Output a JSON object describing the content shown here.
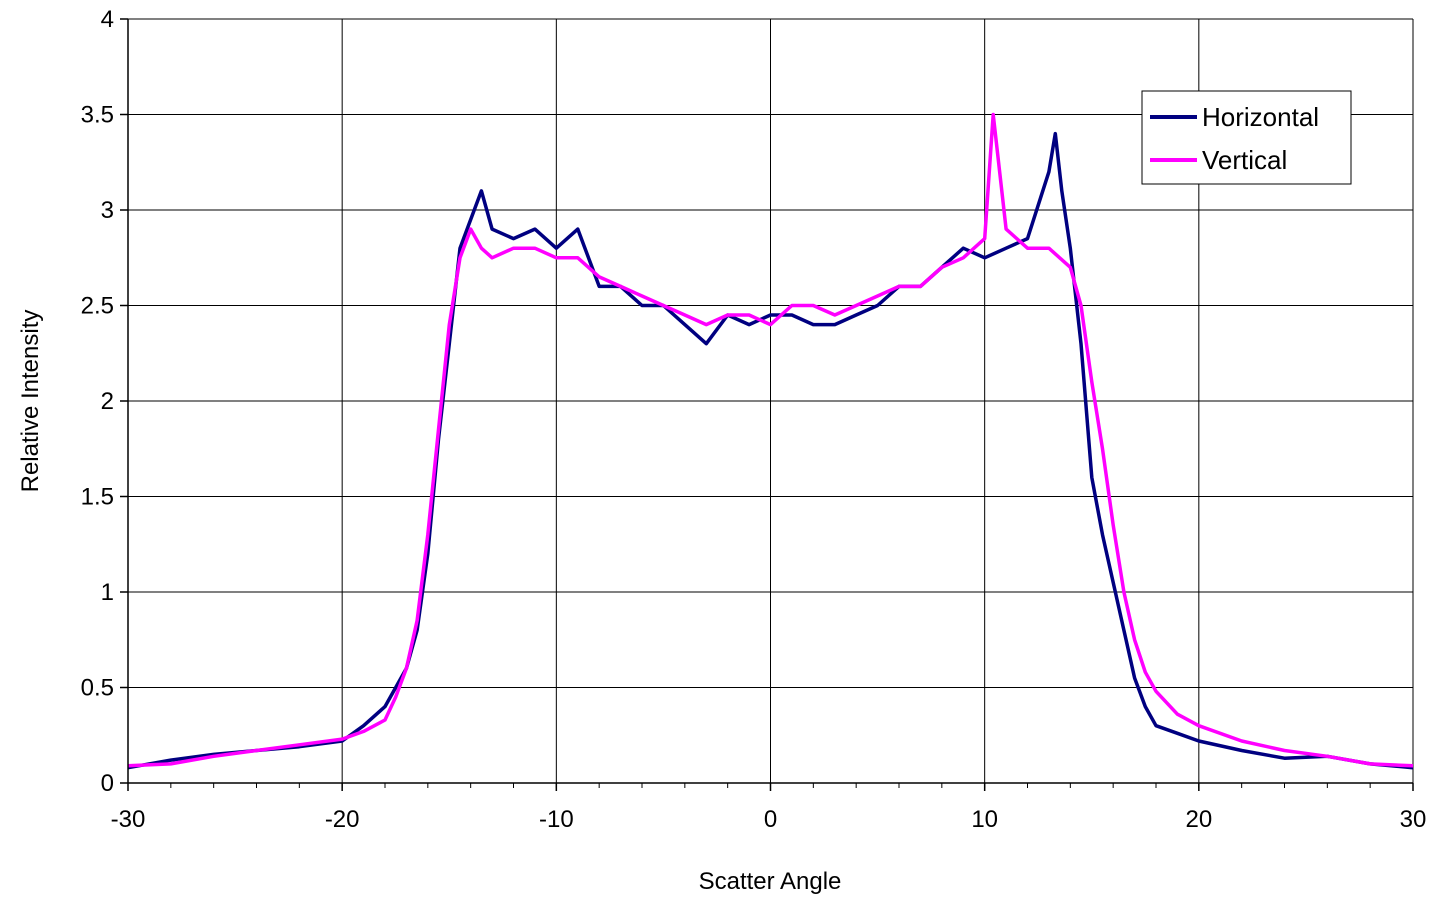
{
  "chart_data": {
    "type": "line",
    "title": "",
    "xlabel": "Scatter Angle",
    "ylabel": "Relative Intensity",
    "xlim": [
      -30,
      30
    ],
    "ylim": [
      0,
      4
    ],
    "x_ticks": [
      "-30",
      "-20",
      "-10",
      "0",
      "10",
      "20",
      "30"
    ],
    "y_ticks": [
      "0",
      "0.5",
      "1",
      "1.5",
      "2",
      "2.5",
      "3",
      "3.5",
      "4"
    ],
    "grid": true,
    "legend_position": "top-right",
    "series": [
      {
        "name": "Horizontal",
        "color": "#000080",
        "x": [
          -30,
          -28,
          -26,
          -24,
          -22,
          -20,
          -19,
          -18,
          -17.5,
          -17,
          -16.5,
          -16,
          -15.5,
          -15,
          -14.5,
          -14,
          -13.5,
          -13,
          -12,
          -11,
          -10,
          -9,
          -8,
          -7,
          -6,
          -5,
          -4,
          -3,
          -2,
          -1,
          0,
          1,
          2,
          3,
          4,
          5,
          6,
          7,
          8,
          9,
          10,
          11,
          12,
          13,
          13.3,
          13.6,
          14,
          14.5,
          15,
          15.5,
          16,
          16.5,
          17,
          17.5,
          18,
          19,
          20,
          22,
          24,
          26,
          28,
          30
        ],
        "y": [
          0.08,
          0.12,
          0.15,
          0.17,
          0.19,
          0.22,
          0.3,
          0.4,
          0.5,
          0.6,
          0.8,
          1.2,
          1.8,
          2.3,
          2.8,
          2.95,
          3.1,
          2.9,
          2.85,
          2.9,
          2.8,
          2.9,
          2.6,
          2.6,
          2.5,
          2.5,
          2.4,
          2.3,
          2.45,
          2.4,
          2.45,
          2.45,
          2.4,
          2.4,
          2.45,
          2.5,
          2.6,
          2.6,
          2.7,
          2.8,
          2.75,
          2.8,
          2.85,
          3.2,
          3.4,
          3.1,
          2.8,
          2.3,
          1.6,
          1.3,
          1.05,
          0.8,
          0.55,
          0.4,
          0.3,
          0.26,
          0.22,
          0.17,
          0.13,
          0.14,
          0.1,
          0.08
        ]
      },
      {
        "name": "Vertical",
        "color": "#ff00ff",
        "x": [
          -30,
          -28,
          -26,
          -24,
          -22,
          -20,
          -19,
          -18,
          -17.5,
          -17,
          -16.5,
          -16,
          -15.5,
          -15,
          -14.5,
          -14,
          -13.5,
          -13,
          -12,
          -11,
          -10,
          -9,
          -8,
          -7,
          -6,
          -5,
          -4,
          -3,
          -2,
          -1,
          0,
          1,
          2,
          3,
          4,
          5,
          6,
          7,
          8,
          9,
          10,
          10.4,
          11,
          12,
          13,
          14,
          14.5,
          15,
          15.5,
          16,
          16.5,
          17,
          17.5,
          18,
          19,
          20,
          22,
          24,
          26,
          28,
          30
        ],
        "y": [
          0.09,
          0.1,
          0.14,
          0.17,
          0.2,
          0.23,
          0.27,
          0.33,
          0.45,
          0.6,
          0.85,
          1.3,
          1.85,
          2.4,
          2.75,
          2.9,
          2.8,
          2.75,
          2.8,
          2.8,
          2.75,
          2.75,
          2.65,
          2.6,
          2.55,
          2.5,
          2.45,
          2.4,
          2.45,
          2.45,
          2.4,
          2.5,
          2.5,
          2.45,
          2.5,
          2.55,
          2.6,
          2.6,
          2.7,
          2.75,
          2.85,
          3.5,
          2.9,
          2.8,
          2.8,
          2.7,
          2.5,
          2.1,
          1.75,
          1.35,
          1.0,
          0.75,
          0.58,
          0.48,
          0.36,
          0.3,
          0.22,
          0.17,
          0.14,
          0.1,
          0.09
        ]
      }
    ]
  }
}
